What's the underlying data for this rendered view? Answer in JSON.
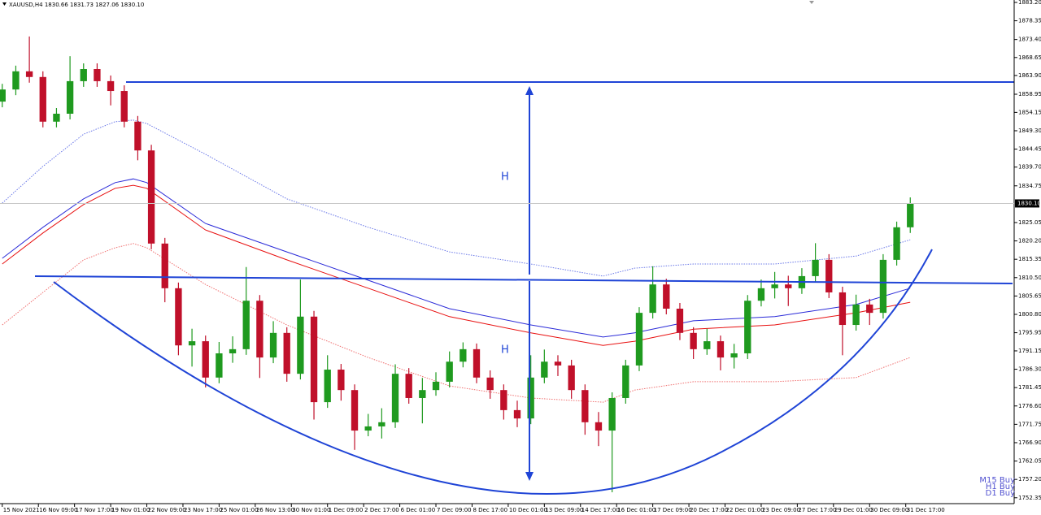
{
  "chart_data": {
    "type": "candlestick",
    "title": "XAUUSD,H4 1830.66 1831.73 1827.06 1830.10",
    "xlim": [
      -0.5,
      224
    ],
    "ylim": [
      1750.8,
      1883.84
    ],
    "xticks": [
      {
        "value": 0,
        "label": "15 Nov 2021"
      },
      {
        "value": 8,
        "label": "16 Nov 09:00"
      },
      {
        "value": 16,
        "label": "17 Nov 17:00"
      },
      {
        "value": 24,
        "label": "19 Nov 01:00"
      },
      {
        "value": 32,
        "label": "22 Nov 09:00"
      },
      {
        "value": 40,
        "label": "23 Nov 17:00"
      },
      {
        "value": 48,
        "label": "25 Nov 01:00"
      },
      {
        "value": 56,
        "label": "26 Nov 13:00"
      },
      {
        "value": 64,
        "label": "30 Nov 01:00"
      },
      {
        "value": 72,
        "label": "1 Dec 09:00"
      },
      {
        "value": 80,
        "label": "2 Dec 17:00"
      },
      {
        "value": 88,
        "label": "6 Dec 01:00"
      },
      {
        "value": 96,
        "label": "7 Dec 09:00"
      },
      {
        "value": 104,
        "label": "8 Dec 17:00"
      },
      {
        "value": 112,
        "label": "10 Dec 01:00"
      },
      {
        "value": 120,
        "label": "13 Dec 09:00"
      },
      {
        "value": 128,
        "label": "14 Dec 17:00"
      },
      {
        "value": 136,
        "label": "16 Dec 01:00"
      },
      {
        "value": 144,
        "label": "17 Dec 09:00"
      },
      {
        "value": 152,
        "label": "20 Dec 17:00"
      },
      {
        "value": 160,
        "label": "22 Dec 01:00"
      },
      {
        "value": 168,
        "label": "23 Dec 09:00"
      },
      {
        "value": 176,
        "label": "27 Dec 17:00"
      },
      {
        "value": 184,
        "label": "29 Dec 01:00"
      },
      {
        "value": 192,
        "label": "30 Dec 09:00"
      },
      {
        "value": 200,
        "label": "31 Dec 17:00"
      }
    ],
    "yticks": [
      {
        "value": 1883.2,
        "label": "1883.20"
      },
      {
        "value": 1878.35,
        "label": "1878.35"
      },
      {
        "value": 1873.4,
        "label": "1873.40"
      },
      {
        "value": 1868.65,
        "label": "1868.65"
      },
      {
        "value": 1863.9,
        "label": "1863.90"
      },
      {
        "value": 1858.95,
        "label": "1858.95"
      },
      {
        "value": 1854.15,
        "label": "1854.15"
      },
      {
        "value": 1849.3,
        "label": "1849.30"
      },
      {
        "value": 1844.45,
        "label": "1844.45"
      },
      {
        "value": 1839.7,
        "label": "1839.70"
      },
      {
        "value": 1834.75,
        "label": "1834.75"
      },
      {
        "value": 1825.05,
        "label": "1825.05"
      },
      {
        "value": 1820.2,
        "label": "1820.20"
      },
      {
        "value": 1815.35,
        "label": "1815.35"
      },
      {
        "value": 1810.5,
        "label": "1810.50"
      },
      {
        "value": 1805.65,
        "label": "1805.65"
      },
      {
        "value": 1800.8,
        "label": "1800.80"
      },
      {
        "value": 1795.95,
        "label": "1795.95"
      },
      {
        "value": 1791.15,
        "label": "1791.15"
      },
      {
        "value": 1786.3,
        "label": "1786.30"
      },
      {
        "value": 1781.45,
        "label": "1781.45"
      },
      {
        "value": 1776.6,
        "label": "1776.60"
      },
      {
        "value": 1771.75,
        "label": "1771.75"
      },
      {
        "value": 1766.9,
        "label": "1766.90"
      },
      {
        "value": 1762.05,
        "label": "1762.05"
      },
      {
        "value": 1757.2,
        "label": "1757.20"
      },
      {
        "value": 1752.35,
        "label": "1752.35"
      }
    ],
    "last_price": {
      "value": 1830.1,
      "label": "1830.10"
    },
    "up_color": "#1f9a1f",
    "down_color": "#c0102a",
    "x": [
      0,
      3,
      6,
      9,
      12,
      15,
      18,
      21,
      24,
      27,
      30,
      33,
      36,
      39,
      42,
      45,
      48,
      51,
      54,
      57,
      60,
      63,
      66,
      69,
      72,
      75,
      78,
      81,
      84,
      87,
      90,
      93,
      96,
      99,
      102,
      105,
      108,
      111,
      114,
      117,
      120,
      123,
      126,
      129,
      132,
      135,
      138,
      141,
      144,
      147,
      150,
      153,
      156,
      159,
      162,
      165,
      168,
      171,
      174,
      177,
      180,
      183,
      186,
      189,
      192,
      195,
      198,
      201
    ],
    "open": [
      1857.0,
      1860.2,
      1865.0,
      1863.5,
      1851.7,
      1853.8,
      1862.4,
      1865.6,
      1862.4,
      1859.8,
      1851.7,
      1844.1,
      1819.5,
      1807.7,
      1792.6,
      1793.7,
      1784.1,
      1790.5,
      1791.6,
      1804.4,
      1789.4,
      1795.9,
      1785.1,
      1800.2,
      1777.6,
      1786.2,
      1780.8,
      1770.1,
      1771.2,
      1772.3,
      1785.1,
      1778.7,
      1780.8,
      1783.0,
      1788.3,
      1791.6,
      1784.1,
      1780.8,
      1775.5,
      1773.3,
      1784.1,
      1788.3,
      1787.3,
      1780.8,
      1772.3,
      1770.1,
      1778.7,
      1787.3,
      1801.2,
      1808.7,
      1802.3,
      1795.9,
      1791.6,
      1793.7,
      1789.4,
      1790.5,
      1804.4,
      1807.7,
      1808.7,
      1807.7,
      1810.9,
      1815.2,
      1806.6,
      1798.0,
      1803.4,
      1801.2,
      1815.2,
      1823.8
    ],
    "high": [
      1861.7,
      1866.5,
      1874.2,
      1865.0,
      1855.3,
      1869.0,
      1867.1,
      1867.1,
      1863.9,
      1861.3,
      1853.2,
      1845.6,
      1821.0,
      1809.2,
      1797.0,
      1795.2,
      1793.5,
      1795.0,
      1813.3,
      1805.9,
      1799.0,
      1797.4,
      1810.0,
      1801.7,
      1790.0,
      1787.7,
      1782.3,
      1774.5,
      1776.0,
      1787.6,
      1786.6,
      1784.0,
      1785.5,
      1791.0,
      1793.4,
      1793.1,
      1786.0,
      1782.3,
      1778.0,
      1790.0,
      1791.5,
      1790.0,
      1788.8,
      1782.3,
      1775.0,
      1780.2,
      1788.8,
      1802.7,
      1813.5,
      1810.2,
      1803.8,
      1797.4,
      1797.0,
      1795.2,
      1793.0,
      1805.9,
      1810.0,
      1812.0,
      1811.0,
      1813.0,
      1819.6,
      1816.7,
      1808.1,
      1806.0,
      1804.9,
      1816.7,
      1825.3,
      1831.7
    ],
    "low": [
      1855.5,
      1858.7,
      1862.0,
      1850.2,
      1850.2,
      1852.3,
      1860.9,
      1860.9,
      1856.0,
      1850.2,
      1841.5,
      1818.0,
      1804.0,
      1790.0,
      1787.0,
      1781.5,
      1782.6,
      1788.0,
      1790.1,
      1784.0,
      1787.9,
      1783.0,
      1783.6,
      1773.0,
      1776.1,
      1778.0,
      1765.0,
      1768.6,
      1768.0,
      1770.8,
      1777.2,
      1772.0,
      1779.3,
      1781.5,
      1786.8,
      1782.6,
      1778.5,
      1773.0,
      1771.0,
      1771.8,
      1782.6,
      1784.5,
      1778.5,
      1769.0,
      1766.0,
      1753.8,
      1777.2,
      1785.8,
      1799.7,
      1800.8,
      1794.0,
      1789.0,
      1790.1,
      1786.0,
      1786.5,
      1789.0,
      1802.9,
      1805.0,
      1803.0,
      1806.2,
      1809.4,
      1805.1,
      1790.0,
      1796.5,
      1798.0,
      1799.7,
      1813.7,
      1822.3
    ],
    "close": [
      1860.2,
      1865.0,
      1863.5,
      1851.7,
      1853.8,
      1862.4,
      1865.6,
      1862.4,
      1859.8,
      1851.7,
      1844.1,
      1819.5,
      1807.7,
      1792.6,
      1793.7,
      1784.1,
      1790.5,
      1791.6,
      1804.4,
      1789.4,
      1795.9,
      1785.1,
      1800.2,
      1777.6,
      1786.2,
      1780.8,
      1770.1,
      1771.2,
      1772.3,
      1785.1,
      1778.7,
      1780.8,
      1783.0,
      1788.3,
      1791.6,
      1784.1,
      1780.8,
      1775.5,
      1773.3,
      1784.1,
      1788.3,
      1787.3,
      1780.8,
      1772.3,
      1770.1,
      1778.7,
      1787.3,
      1801.2,
      1808.7,
      1802.3,
      1795.9,
      1791.6,
      1793.7,
      1789.4,
      1790.5,
      1804.4,
      1807.7,
      1808.7,
      1807.7,
      1810.9,
      1815.2,
      1806.6,
      1798.0,
      1803.4,
      1801.2,
      1815.2,
      1823.8,
      1830.1
    ],
    "ma_x": [
      0,
      9,
      18,
      25,
      29,
      32,
      45,
      63,
      81,
      99,
      117,
      133,
      140,
      153,
      171,
      189,
      201
    ],
    "ma_series": [
      {
        "color": "#6a78e8",
        "dotted": true,
        "values": [
          1830.2,
          1839.9,
          1848.4,
          1851.7,
          1852.1,
          1851.2,
          1843.1,
          1831.3,
          1823.8,
          1817.3,
          1814.1,
          1810.9,
          1813.0,
          1814.1,
          1814.1,
          1816.2,
          1820.5
        ]
      },
      {
        "color": "#2a2ad8",
        "dotted": false,
        "values": [
          1815.6,
          1823.8,
          1831.3,
          1835.6,
          1836.6,
          1835.6,
          1824.8,
          1817.3,
          1809.8,
          1802.3,
          1798.0,
          1794.8,
          1795.9,
          1799.1,
          1800.2,
          1803.4,
          1807.7
        ]
      },
      {
        "color": "#e81010",
        "dotted": false,
        "values": [
          1814.1,
          1822.3,
          1829.8,
          1834.1,
          1834.9,
          1834.1,
          1823.1,
          1815.2,
          1807.7,
          1800.2,
          1795.9,
          1792.6,
          1793.7,
          1796.9,
          1798.0,
          1801.2,
          1804.0
        ]
      },
      {
        "color": "#f07070",
        "dotted": true,
        "values": [
          1798.0,
          1806.6,
          1815.2,
          1818.4,
          1819.5,
          1818.4,
          1808.7,
          1798.0,
          1789.4,
          1781.9,
          1778.7,
          1777.6,
          1780.8,
          1783.0,
          1783.0,
          1784.1,
          1789.4
        ]
      }
    ],
    "annotations": [
      "H",
      "H"
    ],
    "signals": [
      "M15 Buy",
      "H1 Buy",
      "D1 Buy"
    ]
  }
}
